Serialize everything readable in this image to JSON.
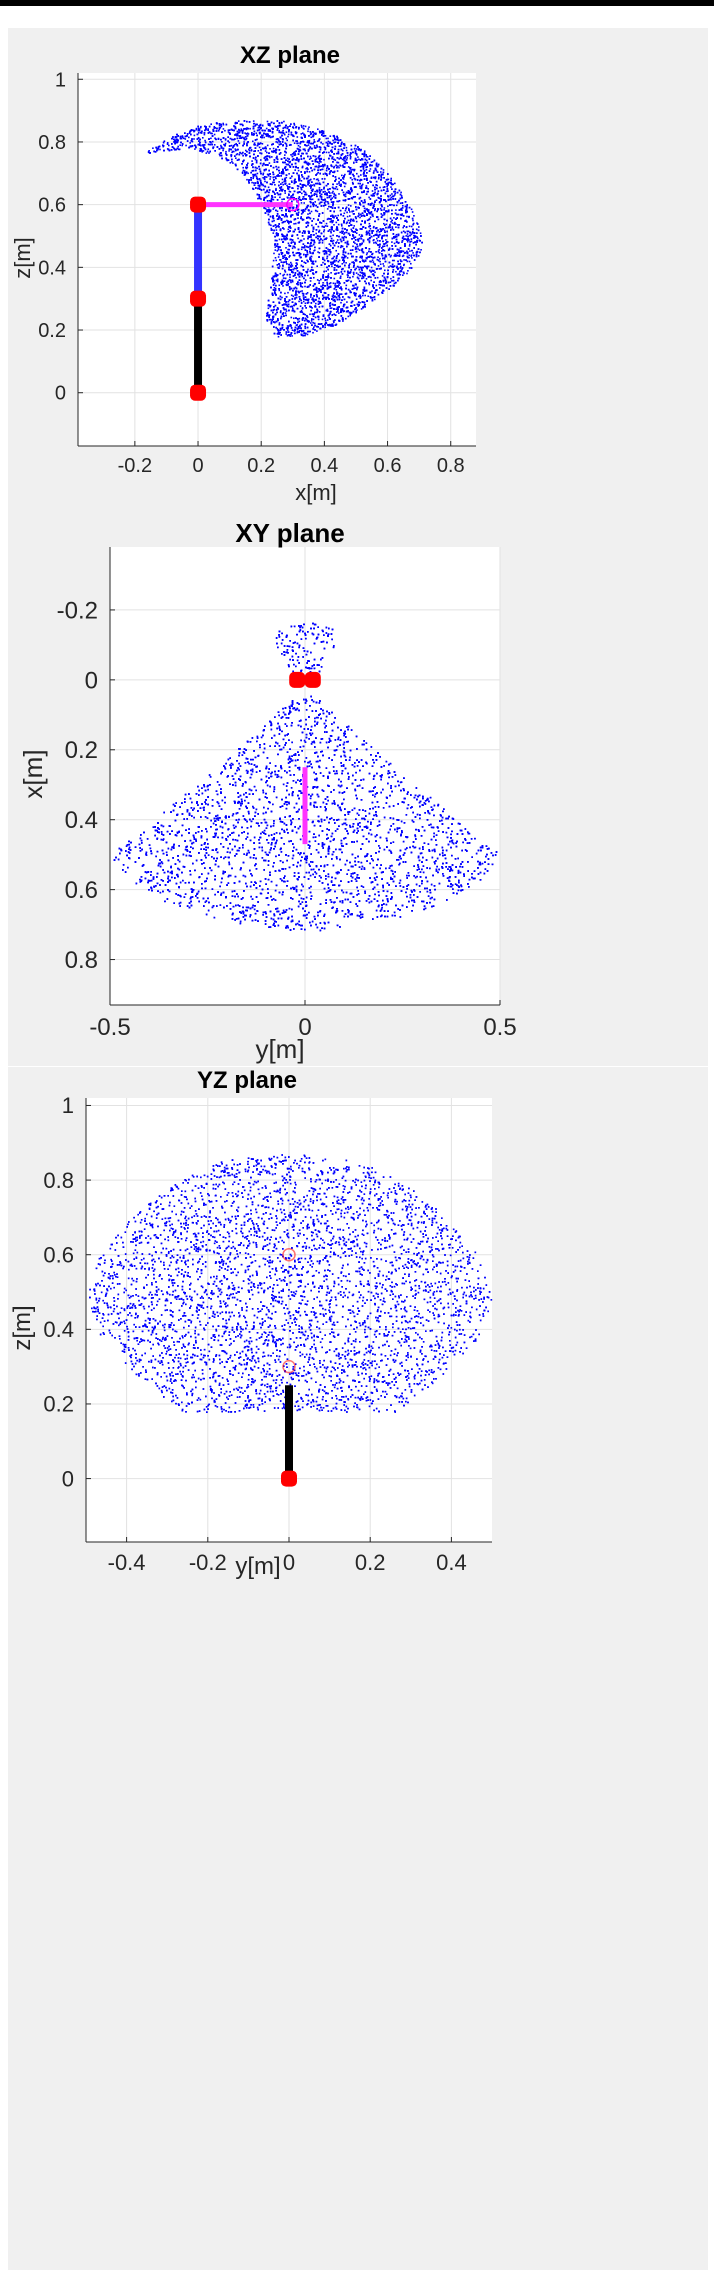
{
  "chart_data": [
    {
      "type": "scatter",
      "title": "XZ plane",
      "xlabel": "x[m]",
      "ylabel": "z[m]",
      "xlim": [
        -0.38,
        0.88
      ],
      "ylim": [
        -0.17,
        1.02
      ],
      "xticks": [
        -0.2,
        0,
        0.2,
        0.4,
        0.6,
        0.8
      ],
      "yticks": [
        0,
        0.2,
        0.4,
        0.6,
        0.8,
        1
      ],
      "xtick_labels": [
        "-0.2",
        "0",
        "0.2",
        "0.4",
        "0.6",
        "0.8"
      ],
      "ytick_labels": [
        "0",
        "0.2",
        "0.4",
        "0.6",
        "0.8",
        "1"
      ],
      "grid": true,
      "workspace": {
        "color": "#0000ff",
        "outline": [
          [
            -0.18,
            0.76
          ],
          [
            -0.09,
            0.82
          ],
          [
            0.02,
            0.86
          ],
          [
            0.12,
            0.87
          ],
          [
            0.26,
            0.87
          ],
          [
            0.4,
            0.84
          ],
          [
            0.52,
            0.78
          ],
          [
            0.6,
            0.7
          ],
          [
            0.67,
            0.6
          ],
          [
            0.71,
            0.5
          ],
          [
            0.7,
            0.43
          ],
          [
            0.64,
            0.36
          ],
          [
            0.55,
            0.29
          ],
          [
            0.44,
            0.22
          ],
          [
            0.32,
            0.18
          ],
          [
            0.24,
            0.18
          ],
          [
            0.21,
            0.24
          ],
          [
            0.23,
            0.36
          ],
          [
            0.24,
            0.48
          ],
          [
            0.2,
            0.6
          ],
          [
            0.14,
            0.7
          ],
          [
            0.06,
            0.76
          ],
          [
            -0.05,
            0.78
          ],
          [
            -0.14,
            0.77
          ]
        ]
      },
      "arm": [
        {
          "name": "link1",
          "points": [
            [
              0,
              0
            ],
            [
              0,
              0.3
            ]
          ],
          "color": "#000000"
        },
        {
          "name": "link2",
          "points": [
            [
              0,
              0.3
            ],
            [
              0,
              0.6
            ]
          ],
          "color": "#3333ff"
        },
        {
          "name": "link3",
          "points": [
            [
              0,
              0.6
            ],
            [
              0.3,
              0.6
            ]
          ],
          "color": "#ff33ff"
        }
      ],
      "joints": [
        [
          0,
          0
        ],
        [
          0,
          0.3
        ],
        [
          0,
          0.6
        ]
      ],
      "end_effector": [
        0.3,
        0.6
      ],
      "joint_color": "#ff0000"
    },
    {
      "type": "scatter",
      "title": "XY plane",
      "xlabel": "y[m]",
      "ylabel": "x[m]",
      "xlim": [
        -0.5,
        0.5
      ],
      "ylim": [
        -0.38,
        0.93
      ],
      "y_reversed": true,
      "xticks": [
        -0.5,
        0,
        0.5
      ],
      "yticks": [
        -0.2,
        0,
        0.2,
        0.4,
        0.6,
        0.8
      ],
      "xtick_labels": [
        "-0.5",
        "0",
        "0.5"
      ],
      "ytick_labels": [
        "-0.2",
        "0",
        "0.2",
        "0.4",
        "0.6",
        "0.8"
      ],
      "grid": true,
      "workspace": {
        "color": "#0000ff",
        "outline": [
          [
            0,
            0.02
          ],
          [
            0.12,
            0.14
          ],
          [
            0.25,
            0.27
          ],
          [
            0.38,
            0.39
          ],
          [
            0.5,
            0.5
          ],
          [
            0.45,
            0.57
          ],
          [
            0.35,
            0.64
          ],
          [
            0.2,
            0.69
          ],
          [
            0,
            0.72
          ],
          [
            -0.2,
            0.69
          ],
          [
            -0.35,
            0.64
          ],
          [
            -0.45,
            0.57
          ],
          [
            -0.5,
            0.5
          ],
          [
            -0.38,
            0.39
          ],
          [
            -0.25,
            0.27
          ],
          [
            -0.12,
            0.14
          ]
        ],
        "top_lobe": [
          [
            0,
            0.02
          ],
          [
            -0.04,
            -0.03
          ],
          [
            -0.08,
            -0.11
          ],
          [
            -0.07,
            -0.15
          ],
          [
            -0.03,
            -0.17
          ],
          [
            0.03,
            -0.17
          ],
          [
            0.07,
            -0.15
          ],
          [
            0.08,
            -0.11
          ],
          [
            0.04,
            -0.03
          ]
        ]
      },
      "arm": [
        {
          "name": "link3",
          "points": [
            [
              0,
              0.25
            ],
            [
              0,
              0.47
            ]
          ],
          "color": "#ff33ff"
        }
      ],
      "joints": [
        [
          -0.02,
          0
        ],
        [
          0.02,
          0
        ]
      ],
      "joint_color": "#ff0000"
    },
    {
      "type": "scatter",
      "title": "YZ plane",
      "xlabel": "y[m]",
      "ylabel": "z[m]",
      "xlim": [
        -0.5,
        0.5
      ],
      "ylim": [
        -0.17,
        1.02
      ],
      "xticks": [
        -0.4,
        -0.2,
        0,
        0.2,
        0.4
      ],
      "yticks": [
        0,
        0.2,
        0.4,
        0.6,
        0.8,
        1
      ],
      "xtick_labels": [
        "-0.4",
        "-0.2",
        "0",
        "0.2",
        "0.4"
      ],
      "ytick_labels": [
        "0",
        "0.2",
        "0.4",
        "0.6",
        "0.8",
        "1"
      ],
      "grid": true,
      "workspace": {
        "color": "#0000ff",
        "outline": [
          [
            -0.06,
            0.87
          ],
          [
            0.06,
            0.87
          ],
          [
            0.18,
            0.85
          ],
          [
            0.3,
            0.78
          ],
          [
            0.4,
            0.69
          ],
          [
            0.47,
            0.59
          ],
          [
            0.5,
            0.48
          ],
          [
            0.46,
            0.37
          ],
          [
            0.36,
            0.26
          ],
          [
            0.26,
            0.18
          ],
          [
            -0.26,
            0.18
          ],
          [
            -0.36,
            0.26
          ],
          [
            -0.46,
            0.37
          ],
          [
            -0.5,
            0.48
          ],
          [
            -0.47,
            0.59
          ],
          [
            -0.4,
            0.69
          ],
          [
            -0.3,
            0.78
          ],
          [
            -0.18,
            0.85
          ]
        ]
      },
      "arm": [
        {
          "name": "link1",
          "points": [
            [
              0,
              0
            ],
            [
              0,
              0.25
            ]
          ],
          "color": "#000000"
        }
      ],
      "joints": [
        [
          0,
          0
        ]
      ],
      "faint_joints": [
        [
          0,
          0.3
        ],
        [
          0,
          0.6
        ]
      ],
      "joint_color": "#ff0000"
    }
  ]
}
